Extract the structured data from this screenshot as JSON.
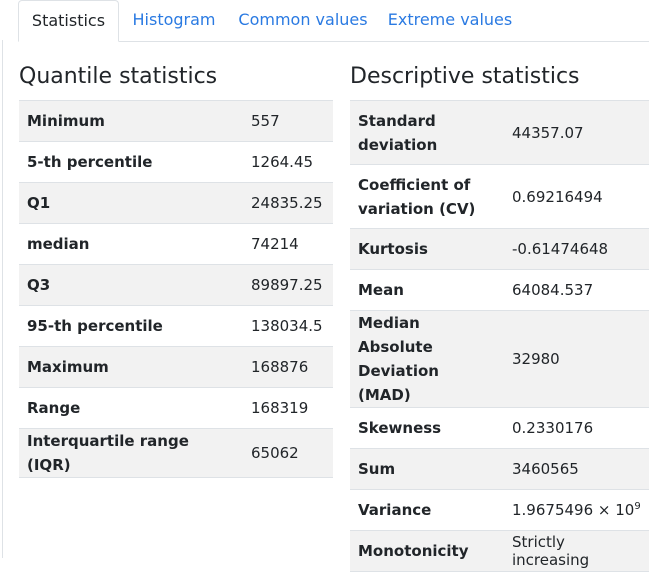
{
  "tabs": [
    {
      "label": "Statistics",
      "active": true
    },
    {
      "label": "Histogram",
      "active": false
    },
    {
      "label": "Common values",
      "active": false
    },
    {
      "label": "Extreme values",
      "active": false
    }
  ],
  "quantile": {
    "title": "Quantile statistics",
    "rows": [
      {
        "label": "Minimum",
        "value": "557"
      },
      {
        "label": "5-th percentile",
        "value": "1264.45"
      },
      {
        "label": "Q1",
        "value": "24835.25"
      },
      {
        "label": "median",
        "value": "74214"
      },
      {
        "label": "Q3",
        "value": "89897.25"
      },
      {
        "label": "95-th percentile",
        "value": "138034.5"
      },
      {
        "label": "Maximum",
        "value": "168876"
      },
      {
        "label": "Range",
        "value": "168319"
      },
      {
        "label": "Interquartile range (IQR)",
        "value": "65062"
      }
    ]
  },
  "descriptive": {
    "title": "Descriptive statistics",
    "rows": [
      {
        "label": "Standard deviation",
        "value": "44357.07"
      },
      {
        "label": "Coefficient of variation (CV)",
        "value": "0.69216494"
      },
      {
        "label": "Kurtosis",
        "value": "-0.61474648"
      },
      {
        "label": "Mean",
        "value": "64084.537"
      },
      {
        "label": "Median Absolute Deviation (MAD)",
        "value": "32980"
      },
      {
        "label": "Skewness",
        "value": "0.2330176"
      },
      {
        "label": "Sum",
        "value": "3460565"
      },
      {
        "label": "Variance",
        "value": "1.9675496 × 10",
        "exponent": "9"
      },
      {
        "label": "Monotonicity",
        "value": "Strictly increasing"
      }
    ]
  }
}
